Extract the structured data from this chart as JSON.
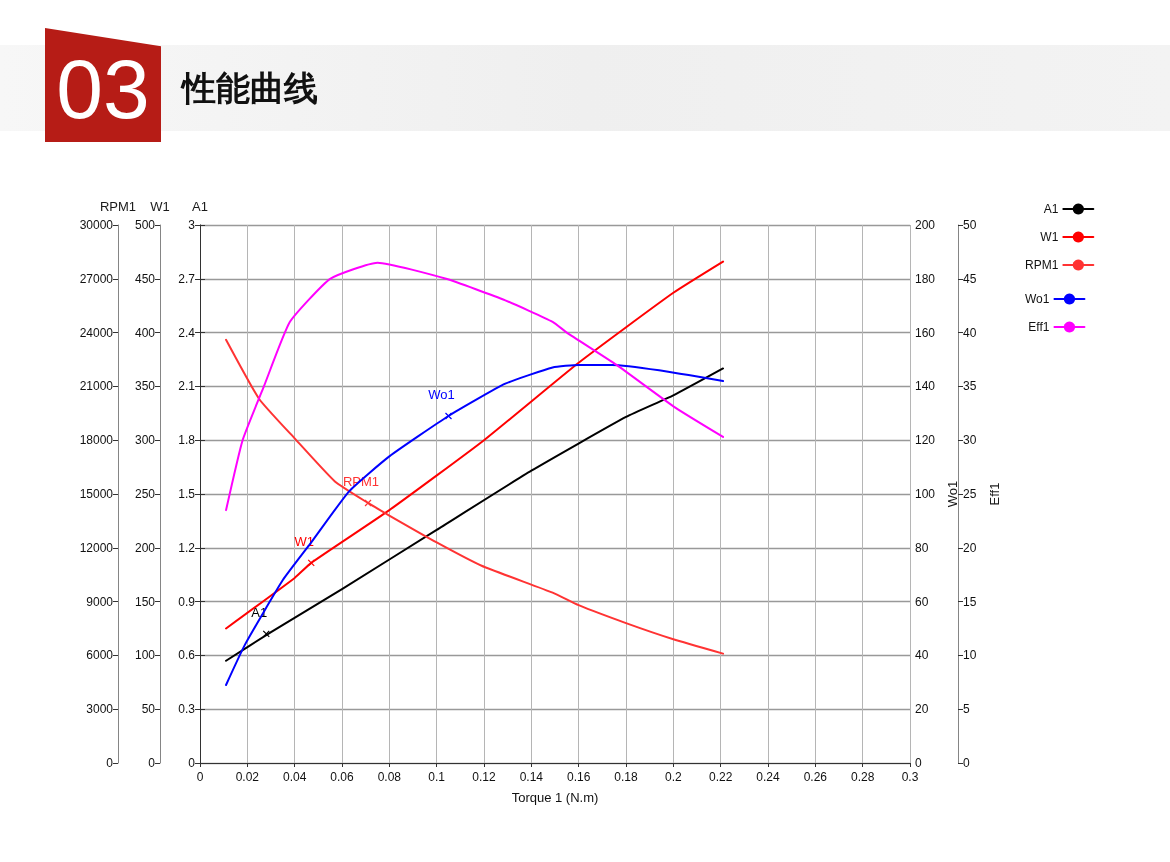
{
  "chart_data": [
    {
      "type": "line",
      "title": "性能曲线",
      "subtitle": "03",
      "xlabel": "Torque 1 (N.m)",
      "ylabel": "A1",
      "y2label": "W1",
      "y3label": "RPM1",
      "xlim": [
        0,
        0.3
      ],
      "xticks": [
        0,
        0.02,
        0.04,
        0.06,
        0.08,
        0.1,
        0.12,
        0.14,
        0.16,
        0.18,
        0.2,
        0.22,
        0.24,
        0.26,
        0.28,
        0.3
      ],
      "ylim": [
        0,
        3
      ],
      "yticks": [
        0,
        0.3,
        0.6,
        0.9,
        1.2,
        1.5,
        1.8,
        2.1,
        2.4,
        2.7,
        3
      ],
      "y2lim": [
        0,
        500
      ],
      "y2ticks": [
        0,
        50,
        100,
        150,
        200,
        250,
        300,
        350,
        400,
        450,
        500
      ],
      "y3lim": [
        0,
        30000
      ],
      "y3ticks": [
        0,
        3000,
        6000,
        9000,
        12000,
        15000,
        18000,
        21000,
        24000,
        27000,
        30000
      ],
      "grid": true,
      "legend": "top right",
      "marker": "none",
      "line_style": "solid",
      "series": [
        {
          "name": "A1",
          "color": "#000000",
          "x": [
            0.011,
            0.03,
            0.06,
            0.1,
            0.14,
            0.18,
            0.2,
            0.221
          ],
          "values": [
            0.57,
            0.73,
            0.97,
            1.3,
            1.63,
            1.93,
            2.05,
            2.2
          ]
        },
        {
          "name": "W1",
          "color": "#ff0000",
          "axis": "y2",
          "x": [
            0.011,
            0.04,
            0.047,
            0.08,
            0.12,
            0.16,
            0.2,
            0.221
          ],
          "values": [
            125,
            172,
            186,
            235,
            300,
            372,
            437,
            466
          ]
        },
        {
          "name": "RPM1",
          "color": "#ff3333",
          "axis": "y3",
          "x": [
            0.011,
            0.025,
            0.04,
            0.057,
            0.071,
            0.08,
            0.1,
            0.119,
            0.149,
            0.16,
            0.18,
            0.2,
            0.221
          ],
          "values": [
            23600,
            20300,
            18100,
            15700,
            14500,
            13800,
            12300,
            11000,
            9500,
            8800,
            7800,
            6900,
            6100
          ]
        }
      ],
      "annotations": [
        {
          "text": "A1",
          "x": 0.028,
          "y": 0.72
        },
        "W1",
        "RPM1"
      ]
    },
    {
      "type": "line",
      "y2label": "Wo1",
      "y3label": "Eff1",
      "xlim": [
        0,
        0.3
      ],
      "xticks": [
        0,
        0.02,
        0.04,
        0.06,
        0.08,
        0.1,
        0.12,
        0.14,
        0.16,
        0.18,
        0.2,
        0.22,
        0.24,
        0.26,
        0.28,
        0.3
      ],
      "y2lim": [
        0,
        200
      ],
      "y2ticks": [
        0,
        20,
        40,
        60,
        80,
        100,
        120,
        140,
        160,
        180,
        200
      ],
      "y3lim": [
        0,
        50
      ],
      "y3ticks": [
        0,
        5,
        10,
        15,
        20,
        25,
        30,
        35,
        40,
        45,
        50
      ],
      "tick_labels": "y",
      "legend": "top right",
      "marker": "none",
      "line_style": "solid",
      "series": [
        {
          "name": "Wo1",
          "color": "#0000ff",
          "axis": "y2",
          "x": [
            0.011,
            0.019,
            0.035,
            0.047,
            0.063,
            0.08,
            0.105,
            0.129,
            0.149,
            0.16,
            0.174,
            0.194,
            0.221
          ],
          "values": [
            29,
            44,
            68,
            82,
            101,
            114,
            129,
            141,
            147,
            148,
            148,
            146,
            142
          ]
        },
        {
          "name": "Eff1",
          "color": "#ff00ff",
          "axis": "y3",
          "x": [
            0.011,
            0.018,
            0.027,
            0.038,
            0.055,
            0.075,
            0.104,
            0.129,
            0.149,
            0.155,
            0.176,
            0.201,
            0.221
          ],
          "values": [
            23.5,
            30,
            35,
            41,
            45,
            46.5,
            45,
            43,
            41,
            40,
            37,
            33,
            30.3
          ]
        }
      ],
      "annotations": [
        "Wo1"
      ]
    }
  ]
}
